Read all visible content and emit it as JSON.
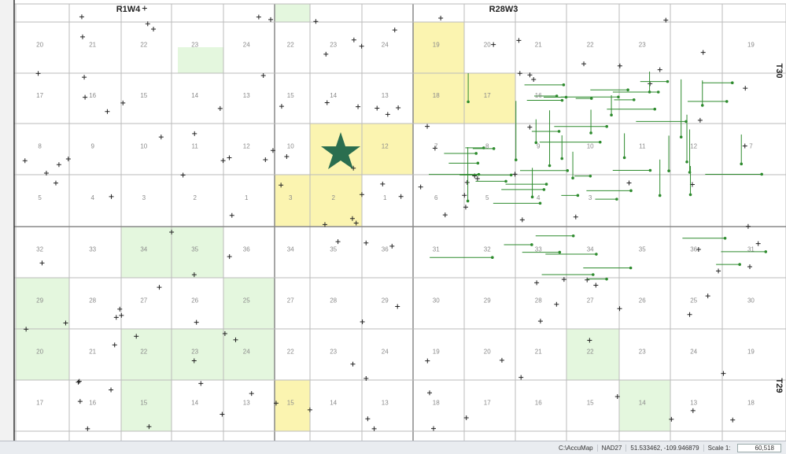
{
  "map": {
    "range_labels": [
      "R1W4",
      "R28W3"
    ],
    "township_labels": [
      "T30",
      "T29"
    ],
    "sections": [
      [
        20,
        21,
        22,
        23,
        24,
        22,
        23,
        24,
        19,
        20,
        21,
        22,
        23,
        null,
        19
      ],
      [
        17,
        16,
        15,
        14,
        13,
        15,
        14,
        13,
        18,
        17,
        16,
        null,
        null,
        null,
        null
      ],
      [
        8,
        9,
        10,
        11,
        12,
        10,
        null,
        12,
        7,
        8,
        9,
        10,
        11,
        12,
        7
      ],
      [
        5,
        4,
        3,
        2,
        1,
        3,
        2,
        1,
        6,
        5,
        4,
        3,
        null,
        null,
        null
      ],
      [
        32,
        33,
        34,
        35,
        36,
        34,
        35,
        36,
        31,
        32,
        33,
        34,
        35,
        36,
        31
      ],
      [
        29,
        28,
        27,
        26,
        25,
        27,
        28,
        29,
        30,
        29,
        28,
        27,
        26,
        25,
        30
      ],
      [
        20,
        21,
        22,
        23,
        24,
        22,
        23,
        24,
        19,
        20,
        21,
        22,
        23,
        24,
        19
      ],
      [
        17,
        16,
        15,
        14,
        13,
        15,
        14,
        13,
        18,
        17,
        16,
        15,
        14,
        13,
        18
      ]
    ]
  },
  "status_bar": {
    "path": "C:\\AccuMap",
    "datum": "NAD27",
    "coordinates": "51.533462, -109.946879",
    "scale_label": "Scale 1:",
    "scale_value": "60,518"
  }
}
